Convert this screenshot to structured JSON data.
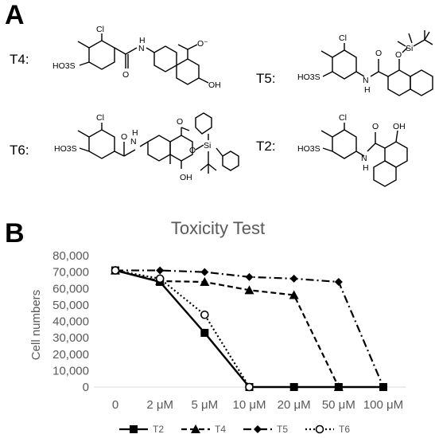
{
  "panels": {
    "a": "A",
    "b": "B"
  },
  "compounds": {
    "t4": {
      "label": "T4:"
    },
    "t5": {
      "label": "T5:"
    },
    "t6": {
      "label": "T6:"
    },
    "t2": {
      "label": "T2:"
    }
  },
  "atom_labels": {
    "cl": "Cl",
    "ho3s": "HO3S",
    "h": "H",
    "n": "N",
    "o": "O",
    "o_minus": "O⁻",
    "oh": "OH",
    "si": "Si"
  },
  "chart_data": {
    "type": "line",
    "title": "Toxicity Test",
    "ylabel": "Cell numbers",
    "xlabel": "",
    "categories": [
      "0",
      "2 μM",
      "5 μM",
      "10 μM",
      "20 μM",
      "50 μM",
      "100 μM"
    ],
    "ylim": [
      0,
      80000
    ],
    "yticks": [
      "0",
      "10,000",
      "20,000",
      "30,000",
      "40,000",
      "50,000",
      "60,000",
      "70,000",
      "80,000"
    ],
    "grid": false,
    "legend_position": "bottom",
    "series": [
      {
        "name": "T2",
        "values": [
          71000,
          64000,
          33000,
          0,
          0,
          0,
          0
        ],
        "marker": "square",
        "dash": "solid"
      },
      {
        "name": "T4",
        "values": [
          71000,
          64500,
          64000,
          59000,
          56000,
          0,
          null
        ],
        "marker": "triangle",
        "dash": "dashed"
      },
      {
        "name": "T5",
        "values": [
          71000,
          71000,
          70000,
          67000,
          66000,
          64000,
          0
        ],
        "marker": "diamond",
        "dash": "dashdot"
      },
      {
        "name": "T6",
        "values": [
          71000,
          66000,
          44000,
          0,
          null,
          null,
          null
        ],
        "marker": "open-circle",
        "dash": "dotted"
      }
    ]
  }
}
